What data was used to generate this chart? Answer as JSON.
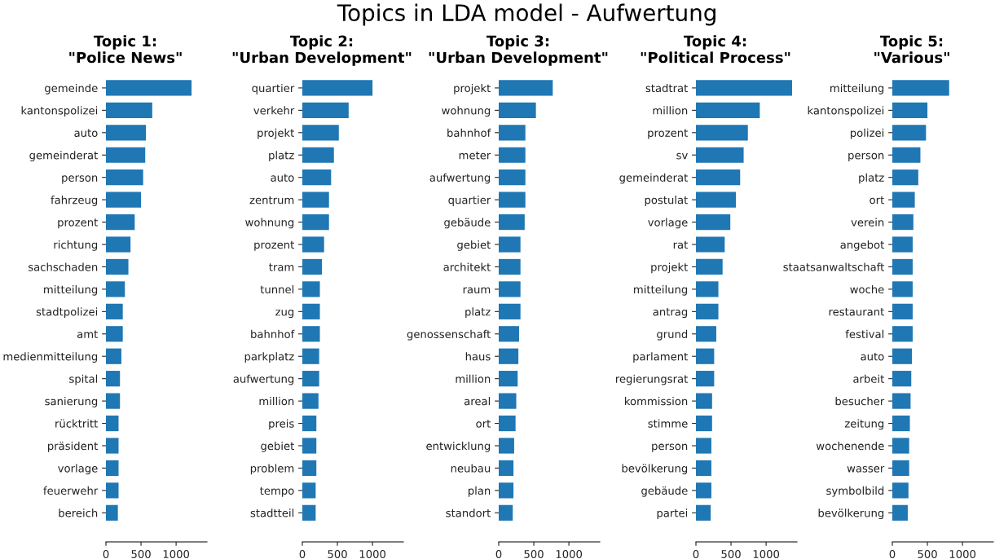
{
  "chart_data": [
    {
      "type": "bar",
      "orientation": "horizontal",
      "title": "Topic 1:\n\"Police News\"",
      "annotations": [
        "Topics in LDA model - Aufwertung"
      ],
      "color": "#1f77b4",
      "xlim": [
        0,
        1440
      ],
      "xticks": [
        0,
        500,
        1000
      ],
      "categories": [
        "gemeinde",
        "kantonspolizei",
        "auto",
        "gemeinderat",
        "person",
        "fahrzeug",
        "prozent",
        "richtung",
        "sachschaden",
        "mitteilung",
        "stadtpolizei",
        "amt",
        "medienmitteilung",
        "spital",
        "sanierung",
        "rücktritt",
        "präsident",
        "vorlage",
        "feuerwehr",
        "bereich"
      ],
      "values": [
        1220,
        660,
        570,
        560,
        530,
        500,
        410,
        350,
        320,
        270,
        240,
        240,
        220,
        200,
        200,
        180,
        180,
        180,
        180,
        170
      ]
    },
    {
      "type": "bar",
      "orientation": "horizontal",
      "title": "Topic 2:\n\"Urban Development\"",
      "color": "#1f77b4",
      "xlim": [
        0,
        1440
      ],
      "xticks": [
        0,
        500,
        1000
      ],
      "categories": [
        "quartier",
        "verkehr",
        "projekt",
        "platz",
        "auto",
        "zentrum",
        "wohnung",
        "prozent",
        "tram",
        "tunnel",
        "zug",
        "bahnhof",
        "parkplatz",
        "aufwertung",
        "million",
        "preis",
        "gebiet",
        "problem",
        "tempo",
        "stadtteil"
      ],
      "values": [
        1000,
        660,
        520,
        450,
        410,
        380,
        380,
        310,
        280,
        250,
        250,
        250,
        240,
        240,
        230,
        200,
        200,
        200,
        190,
        190
      ]
    },
    {
      "type": "bar",
      "orientation": "horizontal",
      "title": "Topic 3:\n\"Urban Development\"",
      "color": "#1f77b4",
      "xlim": [
        0,
        1440
      ],
      "xticks": [
        0,
        500,
        1000
      ],
      "categories": [
        "projekt",
        "wohnung",
        "bahnhof",
        "meter",
        "aufwertung",
        "quartier",
        "gebäude",
        "gebiet",
        "architekt",
        "raum",
        "platz",
        "genossenschaft",
        "haus",
        "million",
        "areal",
        "ort",
        "entwicklung",
        "neubau",
        "plan",
        "standort"
      ],
      "values": [
        770,
        530,
        380,
        380,
        380,
        380,
        370,
        310,
        310,
        310,
        310,
        290,
        280,
        270,
        250,
        240,
        220,
        210,
        210,
        200
      ]
    },
    {
      "type": "bar",
      "orientation": "horizontal",
      "title": "Topic 4:\n\"Political Process\"",
      "color": "#1f77b4",
      "xlim": [
        0,
        1440
      ],
      "xticks": [
        0,
        500,
        1000
      ],
      "categories": [
        "stadtrat",
        "million",
        "prozent",
        "sv",
        "gemeinderat",
        "postulat",
        "vorlage",
        "rat",
        "projekt",
        "mitteilung",
        "antrag",
        "grund",
        "parlament",
        "regierungsrat",
        "kommission",
        "stimme",
        "person",
        "bevölkerung",
        "gebäude",
        "partei"
      ],
      "values": [
        1370,
        910,
        740,
        680,
        630,
        570,
        490,
        410,
        380,
        320,
        320,
        290,
        260,
        260,
        230,
        230,
        220,
        220,
        220,
        210
      ]
    },
    {
      "type": "bar",
      "orientation": "horizontal",
      "title": "Topic 5:\n\"Various\"",
      "color": "#1f77b4",
      "xlim": [
        0,
        1440
      ],
      "xticks": [
        0,
        500,
        1000
      ],
      "categories": [
        "mitteilung",
        "kantonspolizei",
        "polizei",
        "person",
        "platz",
        "ort",
        "verein",
        "angebot",
        "staatsanwaltschaft",
        "woche",
        "restaurant",
        "festival",
        "auto",
        "arbeit",
        "besucher",
        "zeitung",
        "wochenende",
        "wasser",
        "symbolbild",
        "bevölkerung"
      ],
      "values": [
        810,
        500,
        480,
        400,
        370,
        320,
        300,
        290,
        290,
        290,
        290,
        290,
        280,
        270,
        260,
        250,
        240,
        240,
        230,
        220
      ]
    }
  ]
}
